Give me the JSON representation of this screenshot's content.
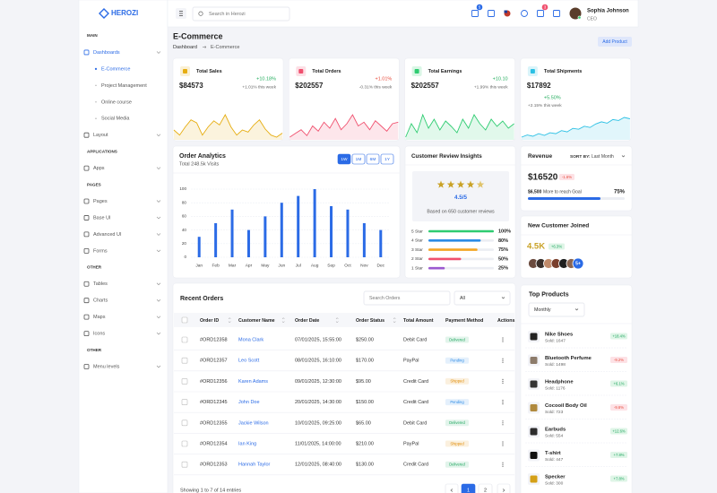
{
  "brand": "HEROZI",
  "nav": [
    {
      "section": "MAIN",
      "items": [
        {
          "label": "Dashboards",
          "children": [
            "E-Commerce",
            "Project Management",
            "Online course",
            "Social Media"
          ]
        },
        {
          "label": "Layout"
        }
      ]
    },
    {
      "section": "APPLICATIONS",
      "items": [
        {
          "label": "Apps"
        }
      ]
    },
    {
      "section": "PAGES",
      "items": [
        {
          "label": "Pages"
        },
        {
          "label": "Base UI"
        },
        {
          "label": "Advanced UI"
        },
        {
          "label": "Forms"
        }
      ]
    },
    {
      "section": "OTHER",
      "items": [
        {
          "label": "Tables"
        },
        {
          "label": "Charts"
        },
        {
          "label": "Maps"
        },
        {
          "label": "Icons"
        }
      ]
    },
    {
      "section": "OTHER",
      "items": [
        {
          "label": "Menu levels"
        }
      ]
    }
  ],
  "header": {
    "search_placeholder": "Search in Herozi",
    "cart_badge": 5,
    "bell_badge": 3,
    "user_name": "Sophia Johnson",
    "user_role": "CEO"
  },
  "page": {
    "title": "E-Commerce",
    "breadcrumb": [
      "Dashboard",
      "E-Commerce"
    ],
    "button": "Add Product"
  },
  "stats": [
    {
      "label": "Total Sales",
      "value": "$84573",
      "change": "+10.18%",
      "note": "+1.01% this week",
      "color": "#e6ad10",
      "spark": [
        35,
        30,
        38,
        45,
        42,
        30,
        38,
        44,
        40,
        50,
        38,
        30,
        35,
        33,
        40,
        45,
        36,
        30,
        28,
        32
      ]
    },
    {
      "label": "Total Orders",
      "value": "$202557",
      "change": "+1.01%",
      "note": "-0.31% this week",
      "color": "#f0506e",
      "spark": [
        40,
        45,
        50,
        42,
        55,
        48,
        60,
        52,
        65,
        50,
        58,
        70,
        55,
        60,
        50,
        62,
        55,
        48,
        58,
        60
      ]
    },
    {
      "label": "Total Earnings",
      "value": "$202557",
      "change": "+10.10",
      "note": "+1.99% this week",
      "color": "#2ecc71",
      "spark": [
        30,
        45,
        35,
        55,
        40,
        50,
        38,
        48,
        42,
        35,
        50,
        40,
        55,
        45,
        38,
        50,
        42,
        48,
        40,
        45
      ]
    },
    {
      "label": "Total Shipments",
      "value": "$17892",
      "change": "+5.50%",
      "note": "+2.15% this week",
      "color": "#2bc0e4",
      "spark": [
        20,
        25,
        22,
        28,
        24,
        30,
        28,
        35,
        32,
        40,
        38,
        45,
        42,
        50,
        55,
        52,
        60,
        58,
        65,
        62
      ]
    }
  ],
  "order_analytics": {
    "title": "Order Analytics",
    "subtitle": "Total 248.5k Visits",
    "tabs": [
      "1W",
      "1M",
      "6M",
      "1Y"
    ],
    "chart_data": {
      "type": "bar",
      "categories": [
        "Jan",
        "Feb",
        "Mar",
        "Apr",
        "May",
        "Jun",
        "Jul",
        "Aug",
        "Sep",
        "Oct",
        "Nov",
        "Dec"
      ],
      "values": [
        30,
        50,
        70,
        40,
        60,
        80,
        90,
        100,
        75,
        70,
        50,
        40
      ],
      "color": "#2b6be6",
      "ylim": [
        0,
        100
      ],
      "yticks": [
        0,
        20,
        40,
        60,
        80,
        100
      ],
      "grid": true
    }
  },
  "reviews": {
    "title": "Customer Review Insights",
    "rating": "4.5/5",
    "note": "Based on 650 customer reviews",
    "rows": [
      {
        "label": "5 Star",
        "value": 100,
        "value_label": "100%",
        "color": "#2ecc71"
      },
      {
        "label": "4 Star",
        "value": 80,
        "value_label": "80%",
        "color": "#2b8be6"
      },
      {
        "label": "3 Star",
        "value": 75,
        "value_label": "75%",
        "color": "#f5a623"
      },
      {
        "label": "2 Star",
        "value": 50,
        "value_label": "50%",
        "color": "#f0506e"
      },
      {
        "label": "1 Star",
        "value": 25,
        "value_label": "25%",
        "color": "#9b59d0"
      }
    ]
  },
  "revenue": {
    "title": "Revenue",
    "sort_label": "SORT BY:",
    "sort_value": "Last Month",
    "amount": "$16520",
    "change": "-1.6%",
    "goal_amount": "$6,500",
    "goal_text": "More to reach Goal",
    "goal_percent": 75,
    "goal_percent_label": "75%"
  },
  "new_customers": {
    "title": "New Customer Joined",
    "count": "4.5K",
    "change": "+6.3%",
    "more": "5+"
  },
  "orders": {
    "title": "Recent Orders",
    "search_placeholder": "Search Orders",
    "filter": "All",
    "columns": [
      "Order ID",
      "Customer Name",
      "Order Date",
      "Order Status",
      "Total Amount",
      "Payment Method",
      "Actions"
    ],
    "rows": [
      [
        "#ORD12358",
        "Mona Clark",
        "07/01/2025, 15:55:00",
        "Delivered",
        "$250.00",
        "Debit Card"
      ],
      [
        "#ORD12357",
        "Leo Scott",
        "08/01/2025, 16:10:00",
        "Pending",
        "$170.00",
        "PayPal"
      ],
      [
        "#ORD12356",
        "Karen Adams",
        "09/01/2025, 12:30:00",
        "Shipped",
        "$95.00",
        "Credit Card"
      ],
      [
        "#ORD12345",
        "John Doe",
        "20/01/2025, 14:30:00",
        "Pending",
        "$150.00",
        "Credit Card"
      ],
      [
        "#ORD12355",
        "Jackie Wilson",
        "10/01/2025, 09:25:00",
        "Delivered",
        "$65.00",
        "Debit Card"
      ],
      [
        "#ORD12354",
        "Ian King",
        "11/01/2025, 14:00:00",
        "Shipped",
        "$210.00",
        "PayPal"
      ],
      [
        "#ORD12353",
        "Hannah Taylor",
        "12/01/2025, 08:40:00",
        "Delivered",
        "$130.00",
        "Credit Card"
      ]
    ],
    "status_colors": {
      "Delivered": "#22a861",
      "Pending": "#2b8be6",
      "Shipped": "#e08a00"
    },
    "footer": "Showing 1 to 7 of 14 entries",
    "pages": [
      1,
      2
    ]
  },
  "top_products": {
    "title": "Top Products",
    "filter": "Monthly",
    "items": [
      {
        "name": "Nike Shoes",
        "sold": "Sold: 1647",
        "change": 18.4,
        "change_label": "+18.4%"
      },
      {
        "name": "Bluetooth Perfume",
        "sold": "Sold: 1498",
        "change": -9.2,
        "change_label": "-9.2%"
      },
      {
        "name": "Headphone",
        "sold": "Sold: 1176",
        "change": 6.1,
        "change_label": "+6.1%"
      },
      {
        "name": "Cocooil Body Oil",
        "sold": "Sold: 723",
        "change": -9.6,
        "change_label": "-9.6%"
      },
      {
        "name": "Earbuds",
        "sold": "Sold: 554",
        "change": 12.6,
        "change_label": "+12.6%"
      },
      {
        "name": "T-shirt",
        "sold": "Sold: 447",
        "change": 7.8,
        "change_label": "+7.8%"
      },
      {
        "name": "Specker",
        "sold": "Sold: 300",
        "change": 7.8,
        "change_label": "+7.8%"
      }
    ]
  }
}
